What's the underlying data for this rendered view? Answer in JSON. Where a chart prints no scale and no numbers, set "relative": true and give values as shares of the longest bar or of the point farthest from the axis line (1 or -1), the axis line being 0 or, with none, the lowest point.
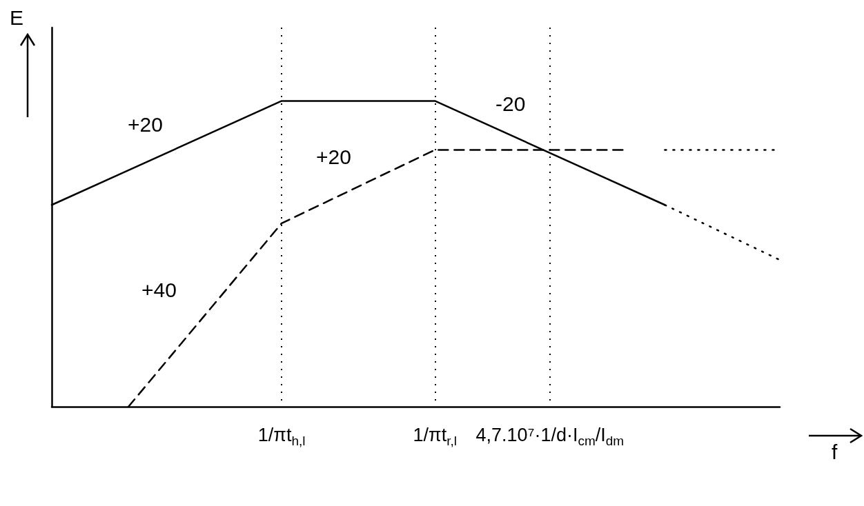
{
  "chart_data": {
    "type": "line",
    "relative": true,
    "xlabel": "f",
    "ylabel": "E",
    "categories": [
      null,
      null,
      null,
      null,
      null,
      null,
      "1/πt$_{h,l}$",
      null,
      null,
      null,
      "1/πt$_{r,l}$",
      null,
      null,
      "4,7.10⁷·1/d·I$_{cm}$/I$_{dm}$",
      null,
      null,
      null,
      null,
      null,
      null
    ],
    "series": [
      {
        "color": "#000000",
        "line_style": "solid",
        "values": [
          0.66,
          null,
          null,
          null,
          null,
          null,
          1,
          null,
          null,
          null,
          1,
          null,
          null,
          null,
          null,
          null,
          0.66,
          null,
          null,
          null
        ]
      },
      {
        "color": "#000000",
        "line_style": "dotted",
        "values": [
          null,
          null,
          null,
          null,
          null,
          null,
          null,
          null,
          null,
          null,
          null,
          null,
          null,
          null,
          null,
          null,
          0.66,
          null,
          null,
          0.48
        ]
      },
      {
        "color": "#000000",
        "line_style": "dashed",
        "values": [
          null,
          null,
          0,
          null,
          null,
          null,
          0.6,
          null,
          null,
          null,
          0.84,
          null,
          null,
          null,
          null,
          0.84,
          null,
          null,
          null,
          null
        ]
      },
      {
        "color": "#000000",
        "line_style": "dotted",
        "values": [
          null,
          null,
          null,
          null,
          null,
          null,
          null,
          null,
          null,
          null,
          null,
          null,
          null,
          null,
          null,
          null,
          0.84,
          null,
          null,
          0.84
        ]
      }
    ],
    "annotations": [
      "+20",
      "+20",
      "-20",
      "+40"
    ],
    "grid": "x",
    "marker": "none"
  }
}
